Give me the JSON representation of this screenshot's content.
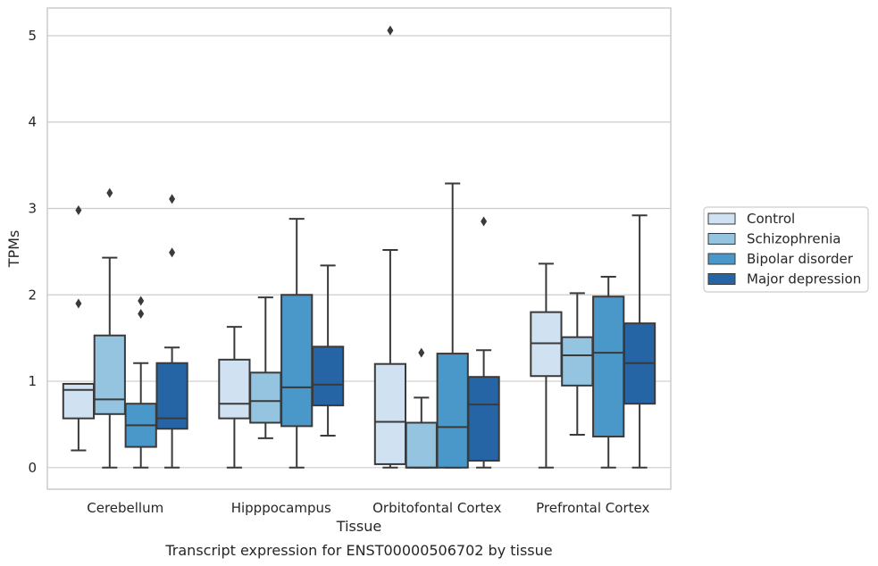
{
  "chart_data": {
    "type": "box",
    "caption": "Transcript expression for ENST00000506702 by tissue",
    "xlabel": "Tissue",
    "ylabel": "TPMs",
    "ylim": [
      -0.25,
      5.32
    ],
    "yticks": [
      0,
      1,
      2,
      3,
      4,
      5
    ],
    "grid": true,
    "legend_position": "right",
    "categories": [
      "Cerebellum",
      "Hipppocampus",
      "Orbitofontal Cortex",
      "Prefrontal Cortex"
    ],
    "series": [
      {
        "name": "Control",
        "color": "#d0e1f2",
        "boxes": [
          {
            "whislo": 0.2,
            "q1": 0.57,
            "med": 0.9,
            "q3": 0.97,
            "whishi": 0.97,
            "fliers": [
              1.9,
              2.98
            ]
          },
          {
            "whislo": 0.0,
            "q1": 0.57,
            "med": 0.74,
            "q3": 1.25,
            "whishi": 1.63,
            "fliers": []
          },
          {
            "whislo": 0.0,
            "q1": 0.04,
            "med": 0.53,
            "q3": 1.2,
            "whishi": 2.52,
            "fliers": [
              5.06
            ]
          },
          {
            "whislo": 0.0,
            "q1": 1.06,
            "med": 1.44,
            "q3": 1.8,
            "whishi": 2.36,
            "fliers": []
          }
        ]
      },
      {
        "name": "Schizophrenia",
        "color": "#94c4df",
        "boxes": [
          {
            "whislo": 0.0,
            "q1": 0.62,
            "med": 0.79,
            "q3": 1.53,
            "whishi": 2.43,
            "fliers": [
              3.18
            ]
          },
          {
            "whislo": 0.34,
            "q1": 0.52,
            "med": 0.77,
            "q3": 1.1,
            "whishi": 1.97,
            "fliers": []
          },
          {
            "whislo": 0.0,
            "q1": 0.0,
            "med": 0.0,
            "q3": 0.52,
            "whishi": 0.81,
            "fliers": [
              1.33
            ]
          },
          {
            "whislo": 0.38,
            "q1": 0.95,
            "med": 1.3,
            "q3": 1.51,
            "whishi": 2.02,
            "fliers": []
          }
        ]
      },
      {
        "name": "Bipolar disorder",
        "color": "#4a98c9",
        "boxes": [
          {
            "whislo": 0.0,
            "q1": 0.24,
            "med": 0.49,
            "q3": 0.74,
            "whishi": 1.21,
            "fliers": [
              1.78,
              1.93
            ]
          },
          {
            "whislo": 0.0,
            "q1": 0.48,
            "med": 0.93,
            "q3": 2.0,
            "whishi": 2.88,
            "fliers": []
          },
          {
            "whislo": 0.0,
            "q1": 0.0,
            "med": 0.47,
            "q3": 1.32,
            "whishi": 3.29,
            "fliers": []
          },
          {
            "whislo": 0.0,
            "q1": 0.36,
            "med": 1.33,
            "q3": 1.98,
            "whishi": 2.21,
            "fliers": []
          }
        ]
      },
      {
        "name": "Major depression",
        "color": "#2565a6",
        "boxes": [
          {
            "whislo": 0.0,
            "q1": 0.45,
            "med": 0.57,
            "q3": 1.21,
            "whishi": 1.39,
            "fliers": [
              2.49,
              3.11
            ]
          },
          {
            "whislo": 0.37,
            "q1": 0.72,
            "med": 0.96,
            "q3": 1.4,
            "whishi": 2.34,
            "fliers": []
          },
          {
            "whislo": 0.0,
            "q1": 0.08,
            "med": 0.73,
            "q3": 1.05,
            "whishi": 1.36,
            "fliers": [
              2.85
            ]
          },
          {
            "whislo": 0.0,
            "q1": 0.74,
            "med": 1.21,
            "q3": 1.67,
            "whishi": 2.92,
            "fliers": []
          }
        ]
      }
    ]
  }
}
